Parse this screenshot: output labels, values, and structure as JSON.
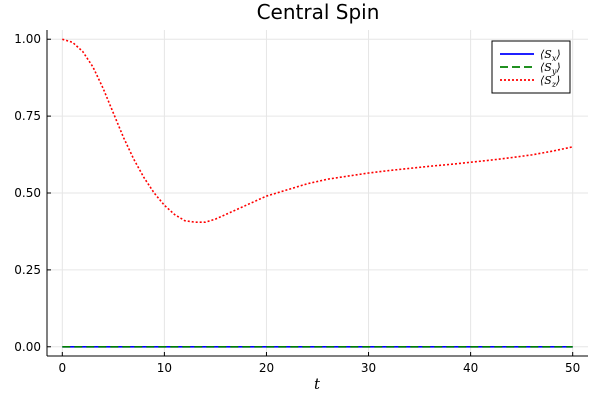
{
  "chart_data": {
    "type": "line",
    "title": "Central Spin",
    "xlabel": "t",
    "ylabel": "",
    "xlim": [
      -1.5,
      51.5
    ],
    "ylim": [
      -0.03,
      1.03
    ],
    "x_ticks": [
      0,
      10,
      20,
      30,
      40,
      50
    ],
    "x_tick_labels": [
      "0",
      "10",
      "20",
      "30",
      "40",
      "50"
    ],
    "y_ticks": [
      0.0,
      0.25,
      0.5,
      0.75,
      1.0
    ],
    "y_tick_labels": [
      "0.00",
      "0.25",
      "0.50",
      "0.75",
      "1.00"
    ],
    "grid": true,
    "legend_position": "top-right",
    "x": [
      0,
      1,
      2,
      3,
      4,
      5,
      6,
      7,
      8,
      9,
      10,
      11,
      12,
      13,
      14,
      15,
      16,
      17,
      18,
      19,
      20,
      22,
      24,
      26,
      28,
      30,
      32,
      34,
      36,
      38,
      40,
      42,
      44,
      46,
      48,
      50
    ],
    "series": [
      {
        "name": "⟨Sx⟩",
        "legend_base": "S",
        "legend_sub": "x",
        "color": "#0000ff",
        "dash": "solid",
        "values": [
          0,
          0,
          0,
          0,
          0,
          0,
          0,
          0,
          0,
          0,
          0,
          0,
          0,
          0,
          0,
          0,
          0,
          0,
          0,
          0,
          0,
          0,
          0,
          0,
          0,
          0,
          0,
          0,
          0,
          0,
          0,
          0,
          0,
          0,
          0,
          0
        ]
      },
      {
        "name": "⟨Sy⟩",
        "legend_base": "S",
        "legend_sub": "y",
        "color": "#008000",
        "dash": "dashed",
        "values": [
          0,
          0,
          0,
          0,
          0,
          0,
          0,
          0,
          0,
          0,
          0,
          0,
          0,
          0,
          0,
          0,
          0,
          0,
          0,
          0,
          0,
          0,
          0,
          0,
          0,
          0,
          0,
          0,
          0,
          0,
          0,
          0,
          0,
          0,
          0,
          0
        ]
      },
      {
        "name": "⟨Sz⟩",
        "legend_base": "S",
        "legend_sub": "z",
        "color": "#ff0000",
        "dash": "dotted",
        "values": [
          1.0,
          0.99,
          0.96,
          0.91,
          0.84,
          0.76,
          0.68,
          0.61,
          0.55,
          0.5,
          0.46,
          0.43,
          0.41,
          0.405,
          0.405,
          0.415,
          0.43,
          0.445,
          0.46,
          0.475,
          0.49,
          0.51,
          0.53,
          0.545,
          0.555,
          0.565,
          0.573,
          0.58,
          0.587,
          0.593,
          0.6,
          0.607,
          0.615,
          0.624,
          0.636,
          0.65
        ]
      }
    ]
  }
}
